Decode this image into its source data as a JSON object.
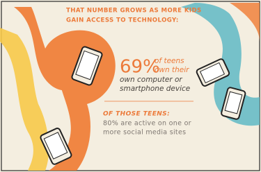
{
  "headline": [
    "THAT NUMBER GROWS AS MORE KIDS",
    "GAIN ACCESS TO TECHNOLOGY:"
  ],
  "stat_one": {
    "figure": "69%",
    "lines": [
      "of teens",
      "own their",
      "own computer or",
      "smartphone device"
    ]
  },
  "stat_two": {
    "heading": "OF THOSE TEENS:",
    "lines": [
      "80% are active on one or",
      "more social media sites"
    ]
  }
}
